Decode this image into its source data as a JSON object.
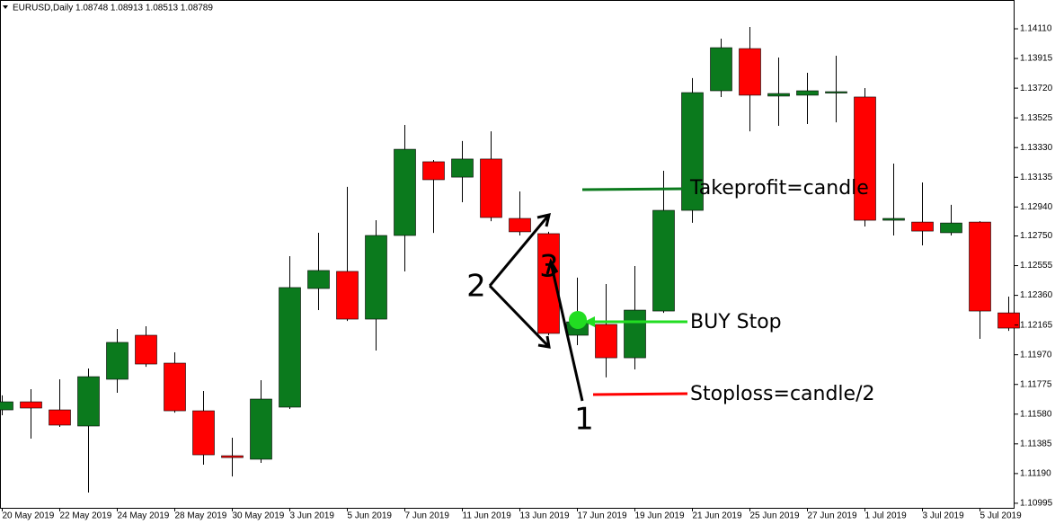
{
  "chart_data": {
    "type": "candlestick",
    "header": "EURUSD,Daily  1.08748 1.08913 1.08513 1.08789",
    "categories": [
      "20 May 2019",
      null,
      "22 May 2019",
      null,
      "24 May 2019",
      null,
      "28 May 2019",
      null,
      "30 May 2019",
      null,
      "3 Jun 2019",
      null,
      "5 Jun 2019",
      null,
      "7 Jun 2019",
      null,
      "11 Jun 2019",
      null,
      "13 Jun 2019",
      null,
      "17 Jun 2019",
      null,
      "19 Jun 2019",
      null,
      "21 Jun 2019",
      null,
      "25 Jun 2019",
      null,
      "27 Jun 2019",
      null,
      "1 Jul 2019",
      null,
      "3 Jul 2019",
      null,
      "5 Jul 2019",
      null
    ],
    "open": [
      1.11608,
      1.11661,
      1.11608,
      1.11502,
      1.11809,
      1.12098,
      1.11915,
      1.11602,
      1.11307,
      1.11284,
      1.11626,
      1.12405,
      1.12517,
      1.12204,
      1.12753,
      1.13237,
      1.13136,
      1.13255,
      1.12865,
      1.12765,
      1.12098,
      1.12169,
      1.1195,
      1.12257,
      1.12918,
      1.13703,
      1.1398,
      1.13668,
      1.13674,
      1.13694,
      1.13662,
      1.12853,
      1.12841,
      1.12771,
      1.12841,
      1.12245
    ],
    "high": [
      1.11703,
      1.11744,
      1.11809,
      1.1188,
      1.12139,
      1.12157,
      1.11986,
      1.11732,
      1.11425,
      1.11803,
      1.12617,
      1.12771,
      1.13072,
      1.12853,
      1.13479,
      1.13249,
      1.13373,
      1.13437,
      1.13042,
      1.12777,
      1.12476,
      1.12434,
      1.12552,
      1.13178,
      1.13786,
      1.14045,
      1.14122,
      1.13921,
      1.13821,
      1.13933,
      1.13721,
      1.13225,
      1.13101,
      1.12954,
      1.12847,
      1.12352
    ],
    "low": [
      1.11573,
      1.11419,
      1.11496,
      1.11065,
      1.1172,
      1.11891,
      1.1159,
      1.11248,
      1.11171,
      1.1126,
      1.11614,
      1.12263,
      1.12192,
      1.11998,
      1.12517,
      1.1277,
      1.12971,
      1.12847,
      1.12753,
      1.12098,
      1.12033,
      1.11821,
      1.11874,
      1.12245,
      1.12836,
      1.13662,
      1.13437,
      1.13473,
      1.13485,
      1.13496,
      1.12812,
      1.12753,
      1.12688,
      1.12753,
      1.12074,
      1.12127
    ],
    "close": [
      1.11661,
      1.1162,
      1.11508,
      1.11826,
      1.12051,
      1.11909,
      1.11602,
      1.11313,
      1.11295,
      1.11679,
      1.12411,
      1.12523,
      1.12204,
      1.12753,
      1.13319,
      1.13119,
      1.13255,
      1.12871,
      1.12777,
      1.1211,
      1.12186,
      1.1195,
      1.12263,
      1.12918,
      1.13691,
      1.13986,
      1.13674,
      1.13685,
      1.13703,
      1.13697,
      1.12853,
      1.12865,
      1.12782,
      1.12835,
      1.12257,
      1.12145
    ],
    "up_color": "#0b7a1d",
    "down_color": "#ff0000",
    "ylim": [
      1.10965,
      1.14299
    ],
    "yticks": [
      {
        "value": 1.1411,
        "label": "1.14110"
      },
      1.13915,
      {
        "value": 1.1372,
        "label": "1.13720"
      },
      1.13525,
      {
        "value": 1.1333,
        "label": "1.13330"
      },
      1.13135,
      {
        "value": 1.1294,
        "label": "1.12940"
      },
      {
        "value": 1.1275,
        "label": "1.12750"
      },
      1.12555,
      {
        "value": 1.1236,
        "label": "1.12360"
      },
      1.12165,
      {
        "value": 1.1197,
        "label": "1.11970"
      },
      1.11775,
      {
        "value": 1.1158,
        "label": "1.11580"
      },
      1.11385,
      {
        "value": 1.1119,
        "label": "1.11190"
      },
      1.10995
    ],
    "annotations": {
      "takeprofit": "Takeprofit=candle",
      "buy_stop": "BUY Stop",
      "stoploss": "Stoploss=candle/2",
      "label_2": "2",
      "label_3": "3",
      "label_1": "1"
    }
  }
}
